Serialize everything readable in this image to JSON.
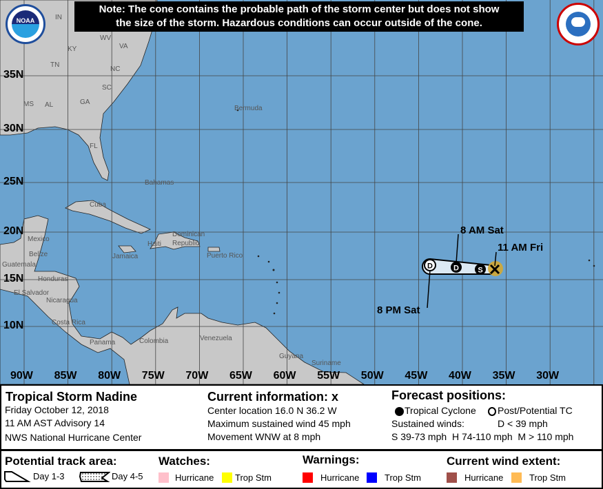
{
  "note": {
    "line1": "Note: The cone contains the probable path of the storm center but does not show",
    "line2": "the size of the storm. Hazardous conditions can occur outside of the cone."
  },
  "latitude_labels": [
    "35N",
    "30N",
    "25N",
    "20N",
    "15N",
    "10N"
  ],
  "longitude_labels": [
    "90W",
    "85W",
    "80W",
    "75W",
    "70W",
    "65W",
    "60W",
    "55W",
    "50W",
    "45W",
    "40W",
    "35W",
    "30W"
  ],
  "places": [
    "IN",
    "WV",
    "KY",
    "VA",
    "TN",
    "NC",
    "SC",
    "MS",
    "AL",
    "GA",
    "FL",
    "Bermuda",
    "Bahamas",
    "Cuba",
    "Mexico",
    "Belize",
    "Jamaica",
    "Haiti",
    "Dominican",
    "Republic",
    "Puerto Rico",
    "Guatemala",
    "Honduras",
    "El Salvador",
    "Nicaragua",
    "Costa Rica",
    "Panama",
    "Colombia",
    "Venezuela",
    "Guyana",
    "Suriname"
  ],
  "track_labels": {
    "current": "11 AM Fri",
    "p1": "8 AM Sat",
    "p2": "8 PM Sat"
  },
  "track_points": [
    {
      "type": "S",
      "time": "current+"
    },
    {
      "type": "D"
    },
    {
      "type": "D",
      "post_tropical": true
    }
  ],
  "logos": {
    "noaa": "NOAA",
    "nws": "NATIONAL WEATHER SERVICE"
  },
  "storm": {
    "title": "Tropical Storm Nadine",
    "date": "Friday October 12, 2018",
    "advisory": "11 AM AST Advisory 14",
    "center": "NWS National Hurricane Center"
  },
  "current": {
    "heading": "Current information:",
    "marker": "x",
    "location": "Center location 16.0 N 36.2 W",
    "wind": "Maximum sustained wind 45 mph",
    "movement": "Movement WNW at 8 mph"
  },
  "forecast": {
    "heading": "Forecast positions:",
    "tc": "Tropical Cyclone",
    "ptc": "Post/Potential TC",
    "sustained": "Sustained winds:",
    "d": "D < 39 mph",
    "shm": "S 39-73 mph  H 74-110 mph  M > 110 mph"
  },
  "legend": {
    "track_heading": "Potential track area:",
    "day13": "Day 1-3",
    "day45": "Day 4-5",
    "watches": "Watches:",
    "warnings": "Warnings:",
    "wind": "Current wind extent:",
    "hurricane": "Hurricane",
    "tropstm": "Trop Stm"
  },
  "colors": {
    "ocean": "#6ba3cf",
    "land": "#c8c8c8",
    "watch_hurricane": "#ffc0cb",
    "watch_tropstm": "#ffff00",
    "warn_hurricane": "#ff0000",
    "warn_tropstm": "#0000ff",
    "wind_hurricane": "#a0504a",
    "wind_tropstm": "#ffbb55",
    "cone": "#dce9f3"
  }
}
